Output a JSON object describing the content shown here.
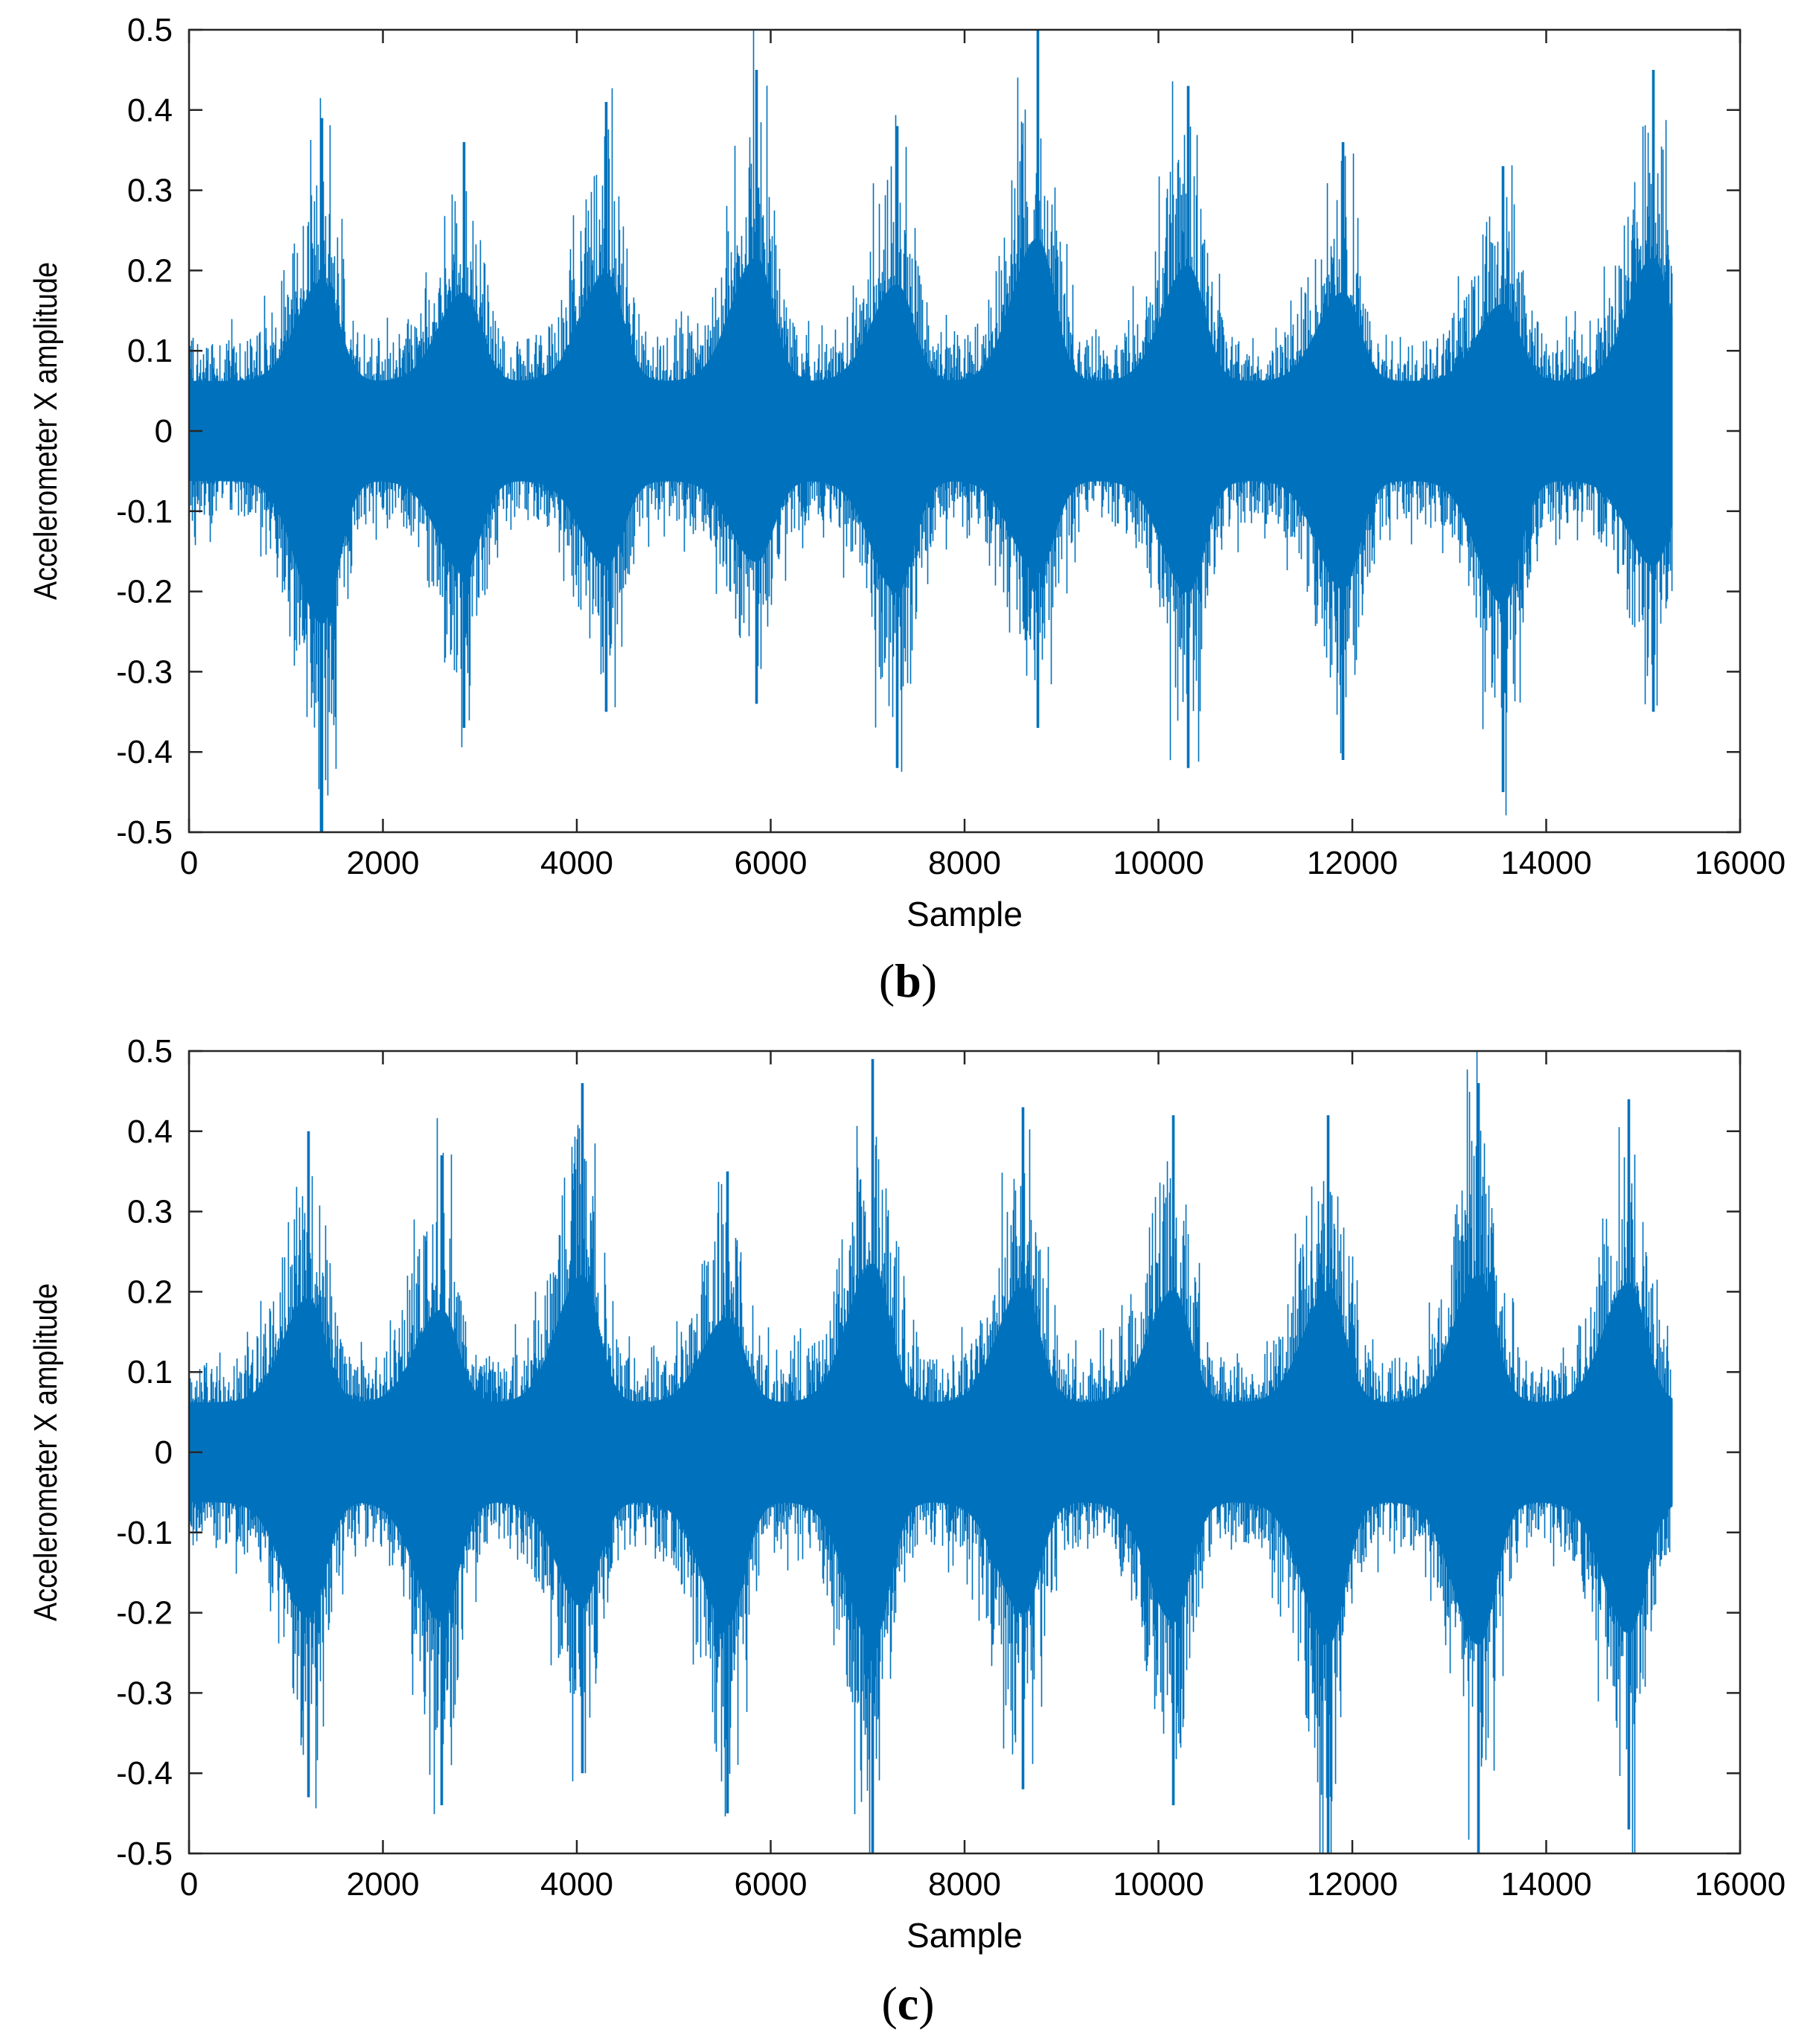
{
  "chart_data": [
    {
      "type": "line",
      "panel_label": "b",
      "caption_open": "(",
      "caption_close": ")",
      "xlabel": "Sample",
      "ylabel": "Accelerometer X amplitude",
      "xlim": [
        0,
        16000
      ],
      "ylim": [
        -0.5,
        0.5
      ],
      "x_ticks": [
        0,
        2000,
        4000,
        6000,
        8000,
        10000,
        12000,
        14000,
        16000
      ],
      "x_tick_labels": [
        "0",
        "2000",
        "4000",
        "6000",
        "8000",
        "10000",
        "12000",
        "14000",
        "16000"
      ],
      "y_ticks": [
        0.5,
        0.4,
        0.3,
        0.2,
        0.1,
        0,
        -0.1,
        -0.2,
        -0.3,
        -0.4,
        -0.5
      ],
      "y_tick_labels": [
        "0.5",
        "0.4",
        "0.3",
        "0.2",
        "0.1",
        "0",
        "-0.1",
        "-0.2",
        "-0.3",
        "-0.4",
        "-0.5"
      ],
      "series_color": "#0072BD",
      "n_samples": 15300,
      "baseline_amplitude": 0.13,
      "bursts": [
        {
          "center": 1370,
          "peak_max": 0.39,
          "peak_min": -0.5
        },
        {
          "center": 2830,
          "peak_max": 0.36,
          "peak_min": -0.37
        },
        {
          "center": 4300,
          "peak_max": 0.41,
          "peak_min": -0.35
        },
        {
          "center": 5850,
          "peak_max": 0.45,
          "peak_min": -0.34
        },
        {
          "center": 7300,
          "peak_max": 0.38,
          "peak_min": -0.42
        },
        {
          "center": 8750,
          "peak_max": 0.5,
          "peak_min": -0.37
        },
        {
          "center": 10300,
          "peak_max": 0.43,
          "peak_min": -0.42
        },
        {
          "center": 11900,
          "peak_max": 0.36,
          "peak_min": -0.41
        },
        {
          "center": 13550,
          "peak_max": 0.33,
          "peak_min": -0.45
        },
        {
          "center": 15100,
          "peak_max": 0.45,
          "peak_min": -0.35
        }
      ]
    },
    {
      "type": "line",
      "panel_label": "c",
      "caption_open": "(",
      "caption_close": ")",
      "xlabel": "Sample",
      "ylabel": "Accelerometer X amplitude",
      "xlim": [
        0,
        16000
      ],
      "ylim": [
        -0.5,
        0.5
      ],
      "x_ticks": [
        0,
        2000,
        4000,
        6000,
        8000,
        10000,
        12000,
        14000,
        16000
      ],
      "x_tick_labels": [
        "0",
        "2000",
        "4000",
        "6000",
        "8000",
        "10000",
        "12000",
        "14000",
        "16000"
      ],
      "y_ticks": [
        0.5,
        0.4,
        0.3,
        0.2,
        0.1,
        0,
        -0.1,
        -0.2,
        -0.3,
        -0.4,
        -0.5
      ],
      "y_tick_labels": [
        "0.5",
        "0.4",
        "0.3",
        "0.2",
        "0.1",
        "0",
        "-0.1",
        "-0.2",
        "-0.3",
        "-0.4",
        "-0.5"
      ],
      "series_color": "#0072BD",
      "n_samples": 15300,
      "baseline_amplitude": 0.13,
      "bursts": [
        {
          "center": 1230,
          "peak_max": 0.4,
          "peak_min": -0.43
        },
        {
          "center": 2600,
          "peak_max": 0.37,
          "peak_min": -0.44
        },
        {
          "center": 4050,
          "peak_max": 0.46,
          "peak_min": -0.4
        },
        {
          "center": 5550,
          "peak_max": 0.35,
          "peak_min": -0.45
        },
        {
          "center": 7050,
          "peak_max": 0.49,
          "peak_min": -0.5
        },
        {
          "center": 8600,
          "peak_max": 0.43,
          "peak_min": -0.42
        },
        {
          "center": 10150,
          "peak_max": 0.42,
          "peak_min": -0.44
        },
        {
          "center": 11750,
          "peak_max": 0.42,
          "peak_min": -0.5
        },
        {
          "center": 13300,
          "peak_max": 0.46,
          "peak_min": -0.5
        },
        {
          "center": 14850,
          "peak_max": 0.44,
          "peak_min": -0.47
        }
      ]
    }
  ]
}
